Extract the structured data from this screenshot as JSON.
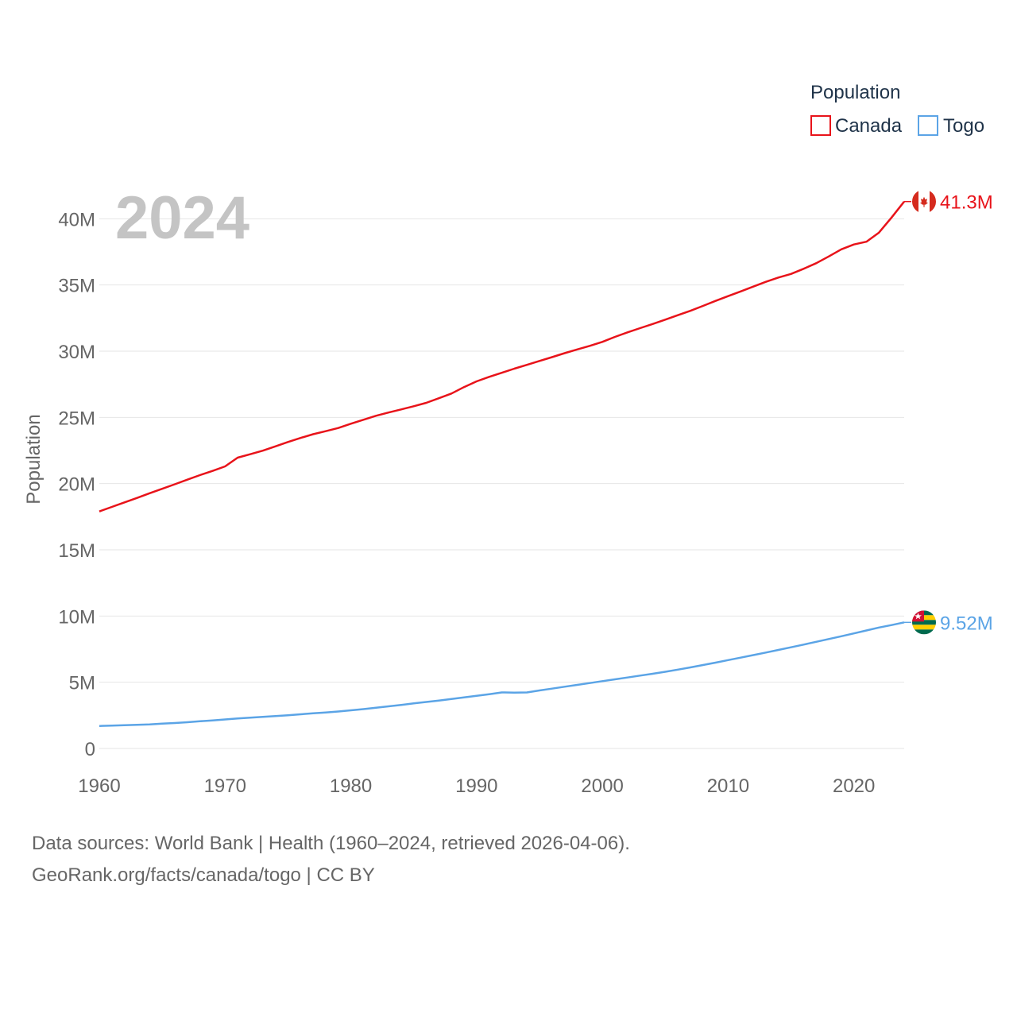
{
  "chart_data": {
    "type": "line",
    "year_label": "2024",
    "ylabel": "Population",
    "legend": {
      "title": "Population",
      "position": "top-right"
    },
    "x": [
      1960,
      1961,
      1962,
      1963,
      1964,
      1965,
      1966,
      1967,
      1968,
      1969,
      1970,
      1971,
      1972,
      1973,
      1974,
      1975,
      1976,
      1977,
      1978,
      1979,
      1980,
      1981,
      1982,
      1983,
      1984,
      1985,
      1986,
      1987,
      1988,
      1989,
      1990,
      1991,
      1992,
      1993,
      1994,
      1995,
      1996,
      1997,
      1998,
      1999,
      2000,
      2001,
      2002,
      2003,
      2004,
      2005,
      2006,
      2007,
      2008,
      2009,
      2010,
      2011,
      2012,
      2013,
      2014,
      2015,
      2016,
      2017,
      2018,
      2019,
      2020,
      2021,
      2022,
      2023,
      2024
    ],
    "xlim": [
      1960,
      2024
    ],
    "ylim": [
      0,
      42000000
    ],
    "x_ticks": [
      {
        "value": 1960,
        "label": "1960"
      },
      {
        "value": 1970,
        "label": "1970"
      },
      {
        "value": 1980,
        "label": "1980"
      },
      {
        "value": 1990,
        "label": "1990"
      },
      {
        "value": 2000,
        "label": "2000"
      },
      {
        "value": 2010,
        "label": "2010"
      },
      {
        "value": 2020,
        "label": "2020"
      }
    ],
    "y_ticks": [
      {
        "value": 0,
        "label": "0"
      },
      {
        "value": 5000000,
        "label": "5M"
      },
      {
        "value": 10000000,
        "label": "10M"
      },
      {
        "value": 15000000,
        "label": "15M"
      },
      {
        "value": 20000000,
        "label": "20M"
      },
      {
        "value": 25000000,
        "label": "25M"
      },
      {
        "value": 30000000,
        "label": "30M"
      },
      {
        "value": 35000000,
        "label": "35M"
      },
      {
        "value": 40000000,
        "label": "40M"
      }
    ],
    "series": [
      {
        "name": "Canada",
        "color": "#e8131a",
        "end_label": "41.3M",
        "flag": "canada-flag-icon",
        "values": [
          17900000,
          18240000,
          18580000,
          18920000,
          19270000,
          19610000,
          19950000,
          20300000,
          20640000,
          20960000,
          21300000,
          21960000,
          22220000,
          22490000,
          22810000,
          23140000,
          23450000,
          23730000,
          23960000,
          24200000,
          24520000,
          24820000,
          25120000,
          25370000,
          25600000,
          25840000,
          26100000,
          26450000,
          26800000,
          27290000,
          27720000,
          28060000,
          28370000,
          28680000,
          28970000,
          29260000,
          29550000,
          29850000,
          30130000,
          30400000,
          30700000,
          31080000,
          31420000,
          31740000,
          32050000,
          32380000,
          32720000,
          33050000,
          33420000,
          33800000,
          34160000,
          34510000,
          34880000,
          35240000,
          35560000,
          35830000,
          36220000,
          36640000,
          37150000,
          37690000,
          38060000,
          38270000,
          38960000,
          40100000,
          41300000
        ]
      },
      {
        "name": "Togo",
        "color": "#5ba4e6",
        "end_label": "9.52M",
        "flag": "togo-flag-icon",
        "values": [
          1700000,
          1730000,
          1760000,
          1790000,
          1820000,
          1870000,
          1920000,
          1980000,
          2050000,
          2120000,
          2190000,
          2260000,
          2330000,
          2390000,
          2450000,
          2510000,
          2580000,
          2650000,
          2720000,
          2790000,
          2880000,
          2970000,
          3070000,
          3180000,
          3290000,
          3400000,
          3510000,
          3620000,
          3740000,
          3860000,
          3980000,
          4100000,
          4230000,
          4220000,
          4230000,
          4380000,
          4520000,
          4660000,
          4800000,
          4940000,
          5080000,
          5220000,
          5360000,
          5500000,
          5640000,
          5790000,
          5950000,
          6120000,
          6300000,
          6480000,
          6670000,
          6860000,
          7050000,
          7240000,
          7440000,
          7640000,
          7840000,
          8050000,
          8260000,
          8470000,
          8690000,
          8910000,
          9130000,
          9320000,
          9520000
        ]
      }
    ]
  },
  "footer": {
    "line1": "Data sources: World Bank | Health (1960–2024, retrieved 2026-04-06).",
    "line2": "GeoRank.org/facts/canada/togo | CC BY"
  }
}
